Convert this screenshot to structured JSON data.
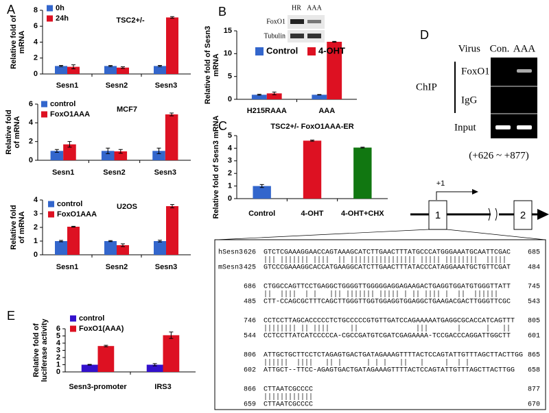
{
  "panel_labels": [
    "A",
    "B",
    "C",
    "D",
    "E"
  ],
  "chart_data": [
    {
      "type": "bar",
      "title": "TSC2+/-",
      "y_label": [
        "Relative fold of",
        "mRNA"
      ],
      "categories": [
        "Sesn1",
        "Sesn2",
        "Sesn3"
      ],
      "series": [
        {
          "name": "0h",
          "color": "#3366cc",
          "values": [
            1,
            1,
            1
          ],
          "errors": [
            0.08,
            0.06,
            0.08
          ]
        },
        {
          "name": "24h",
          "color": "#dd1122",
          "values": [
            0.9,
            0.8,
            7.1
          ],
          "errors": [
            0.25,
            0.1,
            0.1
          ]
        }
      ],
      "ylim": [
        0,
        8
      ],
      "yticks": [
        0,
        2,
        4,
        6,
        8
      ],
      "legend": "upper left"
    },
    {
      "type": "bar",
      "title": "MCF7",
      "y_label": [
        "Relative fold",
        "of mRNA"
      ],
      "categories": [
        "Sesn1",
        "Sesn2",
        "Sesn3"
      ],
      "series": [
        {
          "name": "control",
          "color": "#3366cc",
          "values": [
            1,
            1,
            1
          ],
          "errors": [
            0.15,
            0.3,
            0.3
          ]
        },
        {
          "name": "FoxO1AAA",
          "color": "#dd1122",
          "values": [
            1.7,
            0.95,
            4.9
          ],
          "errors": [
            0.3,
            0.2,
            0.15
          ]
        }
      ],
      "ylim": [
        0,
        6
      ],
      "yticks": [
        0,
        2,
        4,
        6
      ],
      "legend": "upper left"
    },
    {
      "type": "bar",
      "title": "U2OS",
      "y_label": [
        "Relative fold",
        "of mRNA"
      ],
      "categories": [
        "Sesn1",
        "Sesn2",
        "Sesn3"
      ],
      "series": [
        {
          "name": "control",
          "color": "#3366cc",
          "values": [
            1,
            1,
            1
          ],
          "errors": [
            0.05,
            0.04,
            0.06
          ]
        },
        {
          "name": "FoxO1AAA",
          "color": "#dd1122",
          "values": [
            2.05,
            0.7,
            3.55
          ],
          "errors": [
            0.03,
            0.1,
            0.12
          ]
        }
      ],
      "ylim": [
        0,
        4
      ],
      "yticks": [
        0,
        1,
        2,
        3,
        4
      ],
      "legend": "upper left"
    },
    {
      "type": "bar",
      "y_label": [
        "Relative fold of Sesn3",
        "mRNA"
      ],
      "categories": [
        "H215RAAA",
        "AAA"
      ],
      "series": [
        {
          "name": "Control",
          "color": "#3366cc",
          "values": [
            1,
            1
          ],
          "errors": [
            0.1,
            0.05
          ]
        },
        {
          "name": "4-OHT",
          "color": "#dd1122",
          "values": [
            1.3,
            12.6
          ],
          "errors": [
            0.3,
            0.1
          ]
        }
      ],
      "ylim": [
        0,
        15
      ],
      "yticks": [
        0,
        5,
        10,
        15
      ],
      "legend": "upper center"
    },
    {
      "type": "bar",
      "title": "TSC2+/- FoxO1AAA-ER",
      "y_label": [
        "Relative fold of Sesn3 mRNA"
      ],
      "categories": [
        "Control",
        "4-OHT",
        "4-OHT+CHX"
      ],
      "series": [
        {
          "colors": [
            "#3366cc",
            "#dd1122",
            "#117711"
          ],
          "values": [
            1,
            4.6,
            4.05
          ],
          "errors": [
            0.12,
            0.05,
            0.03
          ]
        }
      ],
      "ylim": [
        0,
        5
      ],
      "yticks": [
        0,
        1,
        2,
        3,
        4,
        5
      ]
    },
    {
      "type": "bar",
      "y_label": [
        "Relative fold of",
        "luciferase activity"
      ],
      "categories": [
        "Sesn3-promoter",
        "IRS3"
      ],
      "series": [
        {
          "name": "control",
          "color": "#3311cc",
          "values": [
            1,
            1
          ],
          "errors": [
            0.05,
            0.15
          ]
        },
        {
          "name": "FoxO1(AAA)",
          "color": "#dd1122",
          "values": [
            3.6,
            5.1
          ],
          "errors": [
            0.1,
            0.45
          ]
        }
      ],
      "ylim": [
        0,
        6
      ],
      "yticks": [
        0,
        1,
        2,
        3,
        4,
        5,
        6
      ],
      "legend": "upper left"
    }
  ],
  "western_blot": {
    "lanes": [
      "HR",
      "AAA"
    ],
    "rows": [
      "FoxO1",
      "Tubulin"
    ]
  },
  "chip": {
    "header": "Virus",
    "lanes": [
      "Con.",
      "AAA"
    ],
    "group": "ChIP",
    "rows": [
      "FoxO1",
      "IgG",
      "Input"
    ],
    "region": "(+626 ~ +877)"
  },
  "gene_diagram": {
    "tss": "+1",
    "exons": [
      "1",
      "2"
    ]
  },
  "alignment": {
    "species": [
      "hSesn3",
      "mSesn3"
    ],
    "blocks": [
      [
        {
          "start": 626,
          "seq": "GTCTCGAAAGGAACCAGTAAAGCATCTTGAACTTTATGCCCATGGGAAATGCAATTCGAC",
          "end": 685
        },
        {
          "start": 425,
          "seq": "GTCCCGAAAGGCACCATGAAGGCATCTTGAACTTTATACCCATAGGAAATGCTGTTCGAT",
          "end": 484
        }
      ],
      [
        {
          "start": 686,
          "seq": "CTGGCCAGTTCCTGAGGCTGGGGTTGGGGGAGGAGAAGACTGAGGTGGATGTGGGTTATT",
          "end": 745
        },
        {
          "start": 485,
          "seq": "CTT-CCAGCGCTTTCAGCTTGGGTTGGTGGAGGTGGAGGCTGAAGACGACTTGGGTTCGC",
          "end": 543
        }
      ],
      [
        {
          "start": 746,
          "seq": "CCTCCTTAGCACCCCCTCTGCCCCCGTGTTGATCCAGAAAAATGAGGCGCACCATCAGTTT",
          "end": 805
        },
        {
          "start": 544,
          "seq": "CCTCCTTATCATCCCCCA-CGCCGATGTCGATCGAGAAAA-TCCGACCCAGGATTGGCTT",
          "end": 601
        }
      ],
      [
        {
          "start": 806,
          "seq": "ATTGCTGCTTCCTCTAGAGTGACTGATAGAAAGTTTTACTCCAGTATTGTTTAGCTTACTTGG",
          "end": 865
        },
        {
          "start": 602,
          "seq": "ATTGCT--TTCC-AGAGTGACTGATAGAAAGTTTTACTCCAGTATTGTTTAGCTTACTTGG",
          "end": 658
        }
      ],
      [
        {
          "start": 866,
          "seq": "CTTAATCGCCCC",
          "end": 877
        },
        {
          "start": 659,
          "seq": "CTTAATCGCCCC",
          "end": 670
        }
      ]
    ]
  }
}
